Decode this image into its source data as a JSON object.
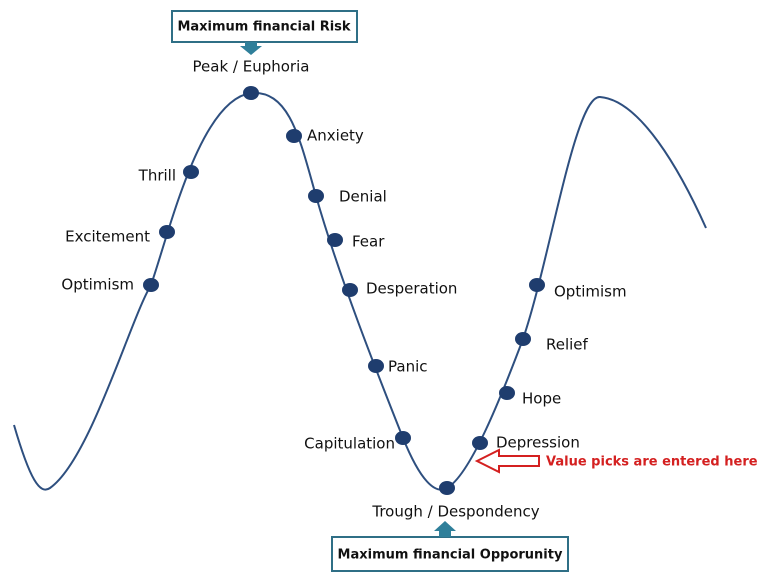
{
  "top_box": {
    "label": "Maximum financial Risk"
  },
  "bottom_box": {
    "label": "Maximum financial Opporunity"
  },
  "nodes": [
    {
      "label": "Peak / Euphoria"
    },
    {
      "label": "Thrill"
    },
    {
      "label": "Excitement"
    },
    {
      "label": "Optimism"
    },
    {
      "label": "Anxiety"
    },
    {
      "label": "Denial"
    },
    {
      "label": "Fear"
    },
    {
      "label": "Desperation"
    },
    {
      "label": "Panic"
    },
    {
      "label": "Capitulation"
    },
    {
      "label": "Trough / Despondency"
    },
    {
      "label": "Depression"
    },
    {
      "label": "Hope"
    },
    {
      "label": "Relief"
    },
    {
      "label": "Optimism"
    }
  ],
  "annotation": {
    "label": "Value picks are entered here"
  }
}
